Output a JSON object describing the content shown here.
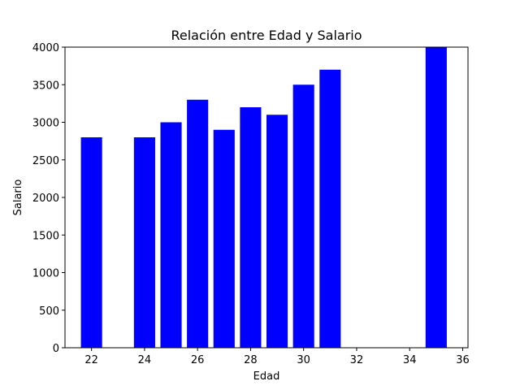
{
  "chart_data": {
    "type": "bar",
    "title": "Relación entre Edad y Salario",
    "xlabel": "Edad",
    "ylabel": "Salario",
    "x": [
      22,
      24,
      25,
      26,
      27,
      28,
      29,
      30,
      31,
      35
    ],
    "values": [
      2800,
      2800,
      3000,
      3300,
      2900,
      3200,
      3100,
      3500,
      3700,
      4000
    ],
    "xlim": [
      21.0,
      36.2
    ],
    "ylim": [
      0,
      4000
    ],
    "xticks": [
      22,
      24,
      26,
      28,
      30,
      32,
      34,
      36
    ],
    "yticks": [
      0,
      500,
      1000,
      1500,
      2000,
      2500,
      3000,
      3500,
      4000
    ],
    "bar_color": "#0000ff",
    "grid": false,
    "legend": "none"
  }
}
